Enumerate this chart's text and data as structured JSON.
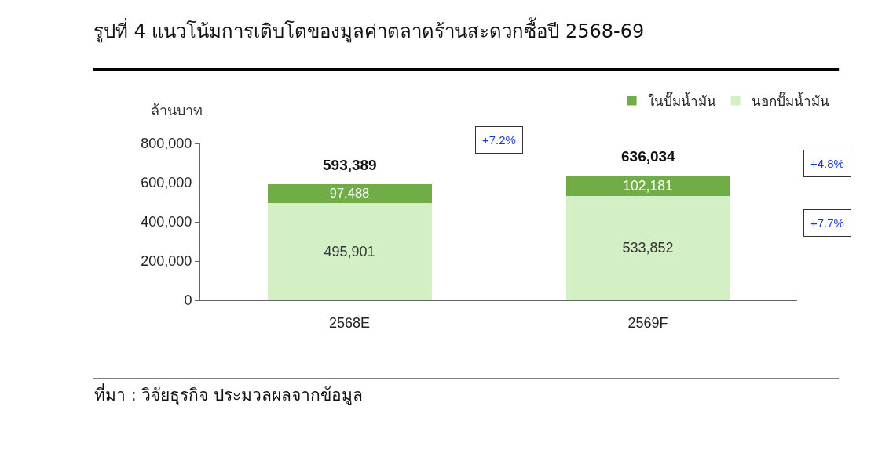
{
  "chart_data": {
    "type": "bar",
    "title": "รูปที่ 4 แนวโน้มการเติบโตของมูลค่าตลาดร้านสะดวกซื้อปี 2568-69",
    "ylabel": "ล้านบาท",
    "categories": [
      "2568E",
      "2569F"
    ],
    "series": [
      {
        "name": "นอกปั๊มน้ำมัน",
        "color": "#d3f0c4",
        "values": [
          495901,
          533852
        ],
        "value_labels": [
          "495,901",
          "533,852"
        ]
      },
      {
        "name": "ในปั๊มน้ำมัน",
        "color": "#70ad47",
        "values": [
          97488,
          102181
        ],
        "value_labels": [
          "97,488",
          "102,181"
        ]
      }
    ],
    "stacked": true,
    "totals": [
      "593,389",
      "636,034"
    ],
    "ylim": [
      0,
      800000
    ],
    "yticks": [
      {
        "value": 0,
        "label": "0"
      },
      {
        "value": 200000,
        "label": "200,000"
      },
      {
        "value": 400000,
        "label": "400,000"
      },
      {
        "value": 600000,
        "label": "600,000"
      },
      {
        "value": 800000,
        "label": "800,000"
      }
    ],
    "grid": false,
    "legend": "top right",
    "annotations": [
      "+7.2%",
      "+4.8%",
      "+7.7%",
      "ที่มา : วิจัยธุรกิจ ประมวลผลจากข้อมูล"
    ]
  }
}
